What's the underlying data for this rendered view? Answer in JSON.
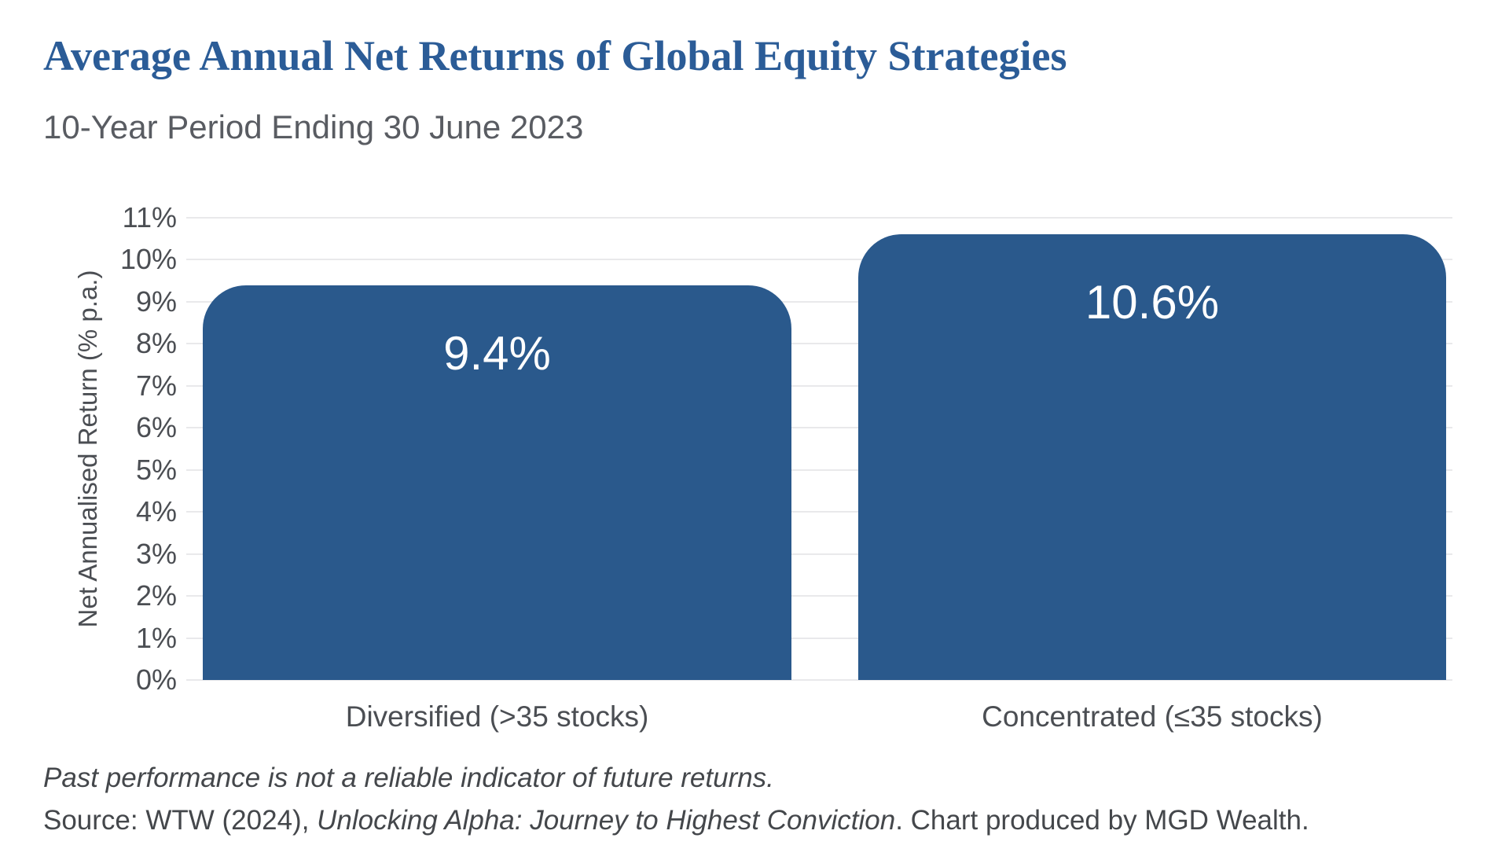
{
  "header": {
    "title": "Average Annual Net Returns of Global Equity Strategies",
    "subtitle": "10-Year Period Ending 30 June 2023"
  },
  "chart_data": {
    "type": "bar",
    "title": "Average Annual Net Returns of Global Equity Strategies",
    "subtitle": "10-Year Period Ending 30 June 2023",
    "categories": [
      "Diversified (>35 stocks)",
      "Concentrated (≤35 stocks)"
    ],
    "values": [
      9.4,
      10.6
    ],
    "value_labels": [
      "9.4%",
      "10.6%"
    ],
    "xlabel": "",
    "ylabel": "Net Annualised Return (% p.a.)",
    "ylim": [
      0,
      11
    ],
    "ytick_step": 1,
    "ytick_labels": [
      "0%",
      "1%",
      "2%",
      "3%",
      "4%",
      "5%",
      "6%",
      "7%",
      "8%",
      "9%",
      "10%",
      "11%"
    ],
    "grid": "horizontal",
    "legend": "none",
    "bar_color": "#2A598C",
    "value_label_color": "#FFFFFF"
  },
  "footer": {
    "disclaimer": "Past performance is not a reliable indicator of future returns.",
    "source_prefix": "Source: WTW (2024), ",
    "source_italic": "Unlocking Alpha: Journey to Highest Conviction",
    "source_suffix": ". Chart produced by MGD Wealth."
  },
  "colors": {
    "title_blue": "#2B5C97",
    "bar_blue": "#2A598C",
    "subtitle_gray": "#595C62",
    "axis_text_gray": "#4B4E53",
    "footer_gray": "#44474B",
    "grid_gray": "#E9E9EB",
    "background": "#FFFFFF"
  }
}
